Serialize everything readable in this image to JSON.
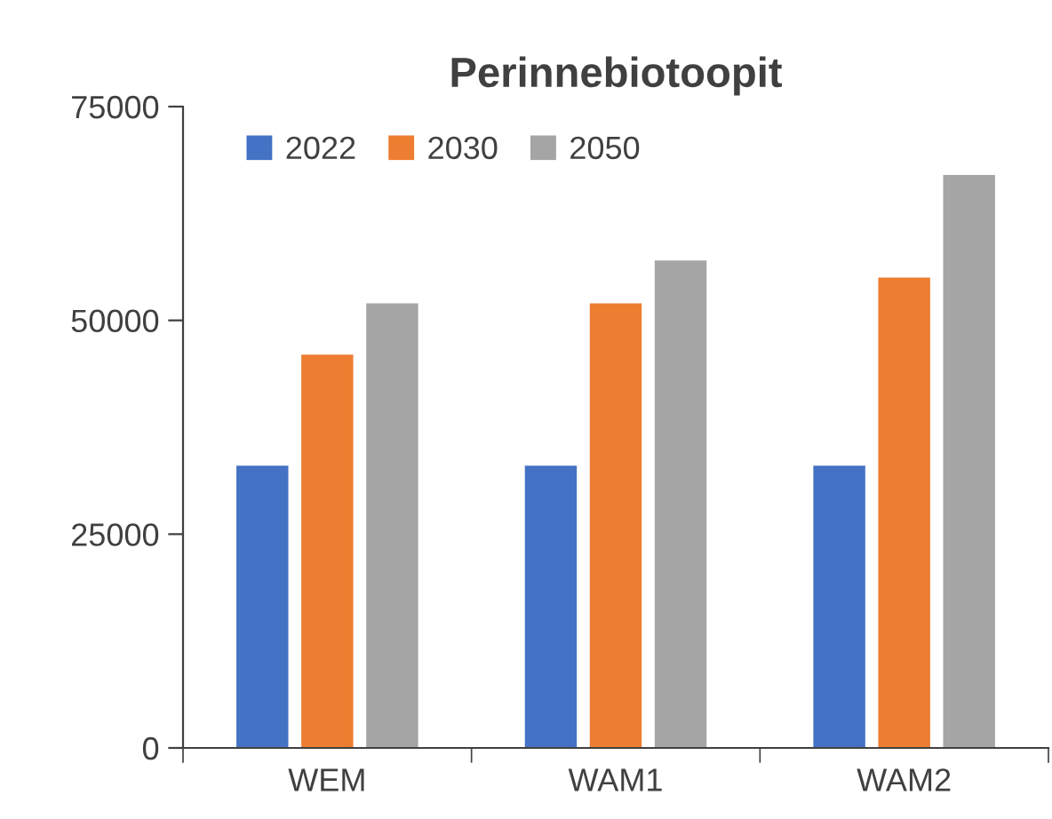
{
  "chart_data": {
    "type": "bar",
    "title": "Perinnebiotoopit",
    "categories": [
      "WEM",
      "WAM1",
      "WAM2"
    ],
    "series": [
      {
        "name": "2022",
        "color": "#4472c4",
        "values": [
          33000,
          33000,
          33000
        ]
      },
      {
        "name": "2030",
        "color": "#ed7d31",
        "values": [
          46000,
          52000,
          55000
        ]
      },
      {
        "name": "2050",
        "color": "#a5a5a5",
        "values": [
          52000,
          57000,
          67000
        ]
      }
    ],
    "ylim": [
      0,
      75000
    ],
    "yticks": [
      0,
      25000,
      50000,
      75000
    ],
    "grid": false,
    "legend": "top left"
  }
}
